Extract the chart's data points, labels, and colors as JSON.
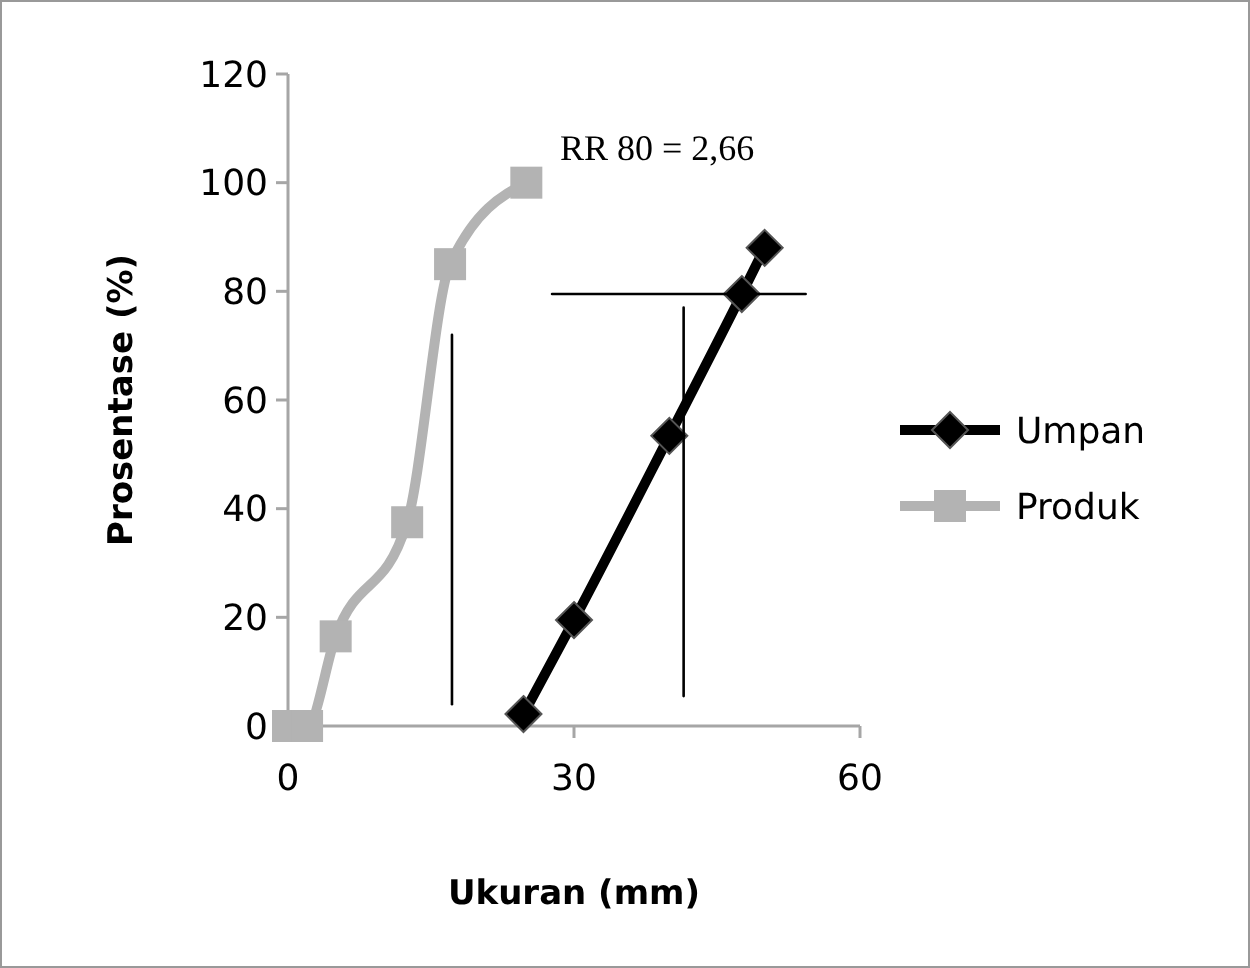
{
  "chart_data": {
    "type": "line",
    "xlabel": "Ukuran (mm)",
    "ylabel": "Prosentase (%)",
    "xlim": [
      0,
      60
    ],
    "xticks": [
      0,
      30,
      60
    ],
    "ylim": [
      0,
      120
    ],
    "yticks": [
      0,
      20,
      40,
      60,
      80,
      100,
      120
    ],
    "grid": false,
    "legend": "right",
    "line_style": "solid",
    "annotations": [
      "RR 80 = 2,66"
    ],
    "series": [
      {
        "name": "Umpan",
        "color": "#000000",
        "marker": "diamond",
        "x": [
          24.7,
          30,
          40,
          47.6,
          50
        ],
        "values": [
          2.2,
          19.5,
          53.4,
          79.5,
          88
        ]
      },
      {
        "name": "Produk",
        "color": "#b3b3b3",
        "marker": "square",
        "x": [
          0,
          2,
          5,
          12.5,
          17,
          25
        ],
        "values": [
          0,
          0,
          16.5,
          37.5,
          85,
          100
        ]
      },
      {
        "type": "line",
        "color": "#000000",
        "marker": "none",
        "x": [
          17.2,
          17.2
        ],
        "values": [
          4,
          72
        ]
      },
      {
        "type": "line",
        "color": "#000000",
        "marker": "none",
        "x": [
          41.5,
          41.5
        ],
        "values": [
          5.5,
          77
        ]
      },
      {
        "type": "line",
        "color": "#000000",
        "marker": "none",
        "x": [
          27.7,
          54.3
        ],
        "values": [
          79.5,
          79.5
        ]
      }
    ]
  }
}
